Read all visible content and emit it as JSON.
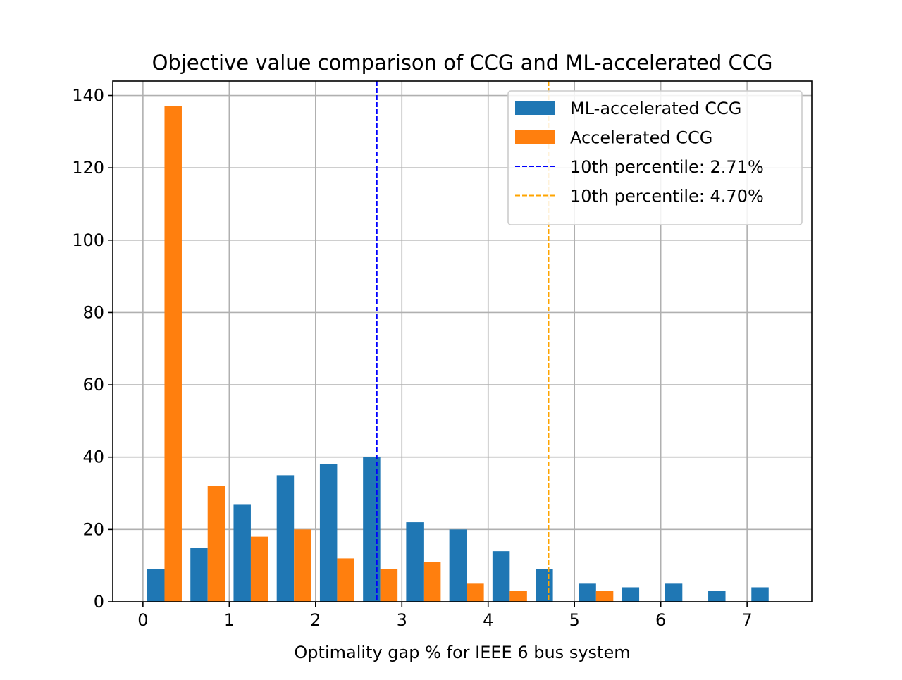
{
  "chart_data": {
    "type": "bar",
    "title": "Objective value comparison of CCG and ML-accelerated CCG",
    "xlabel": "Optimality gap % for IEEE 6 bus system",
    "ylabel": "",
    "xlim": [
      -0.35,
      7.75
    ],
    "ylim": [
      0,
      144
    ],
    "xticks": [
      0,
      1,
      2,
      3,
      4,
      5,
      6,
      7
    ],
    "yticks": [
      0,
      20,
      40,
      60,
      80,
      100,
      120,
      140
    ],
    "grid": true,
    "legend_position": "top-right",
    "bin_edges": [
      0,
      0.5,
      1.0,
      1.5,
      2.0,
      2.5,
      3.0,
      3.5,
      4.0,
      4.5,
      5.0,
      5.5,
      6.0,
      6.5,
      7.0,
      7.5
    ],
    "series": [
      {
        "name": "ML-accelerated CCG",
        "color": "#1f77b4",
        "values": [
          9,
          15,
          27,
          35,
          38,
          40,
          22,
          20,
          14,
          9,
          5,
          4,
          5,
          3,
          4
        ]
      },
      {
        "name": "Accelerated CCG",
        "color": "#ff7f0e",
        "values": [
          137,
          32,
          18,
          20,
          12,
          9,
          11,
          5,
          3,
          0,
          3,
          0,
          0,
          0,
          0
        ]
      }
    ],
    "vlines": [
      {
        "name": "10th percentile: 2.71%",
        "x": 2.71,
        "color": "#0000ff"
      },
      {
        "name": "10th percentile: 4.70%",
        "x": 4.7,
        "color": "#ffa500"
      }
    ]
  }
}
